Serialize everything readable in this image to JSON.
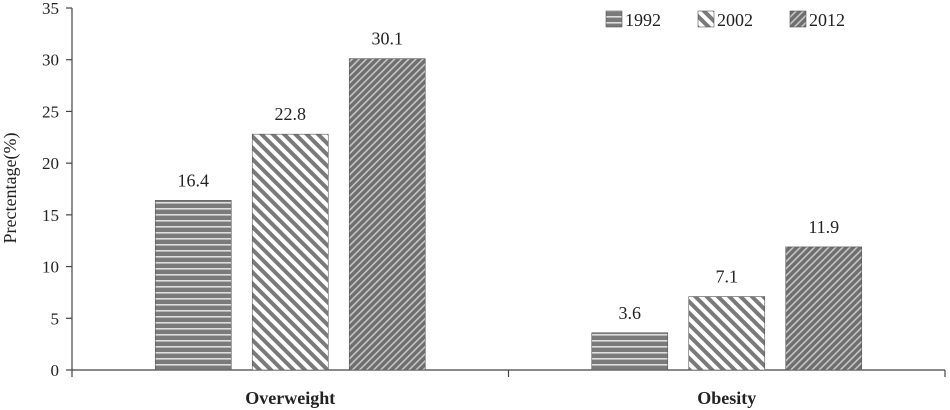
{
  "chart_data": {
    "type": "bar",
    "categories": [
      "Overweight",
      "Obesity"
    ],
    "series": [
      {
        "name": "1992",
        "values": [
          16.4,
          3.6
        ],
        "pattern": "horizontal-stripes"
      },
      {
        "name": "2002",
        "values": [
          22.8,
          7.1
        ],
        "pattern": "diagonal-stripes-light"
      },
      {
        "name": "2012",
        "values": [
          30.1,
          11.9
        ],
        "pattern": "diagonal-stripes-dense"
      }
    ],
    "title": "",
    "xlabel": "",
    "ylabel": "Prectentage(%)",
    "ylim": [
      0,
      35
    ],
    "yticks": [
      0,
      5,
      10,
      15,
      20,
      25,
      30,
      35
    ],
    "grid": false,
    "legend_position": "top-right",
    "data_labels": true,
    "colors": {
      "bar_fill": "#7a7a7a",
      "stripe": "#ffffff",
      "axis": "#444444",
      "text": "#222222"
    }
  }
}
